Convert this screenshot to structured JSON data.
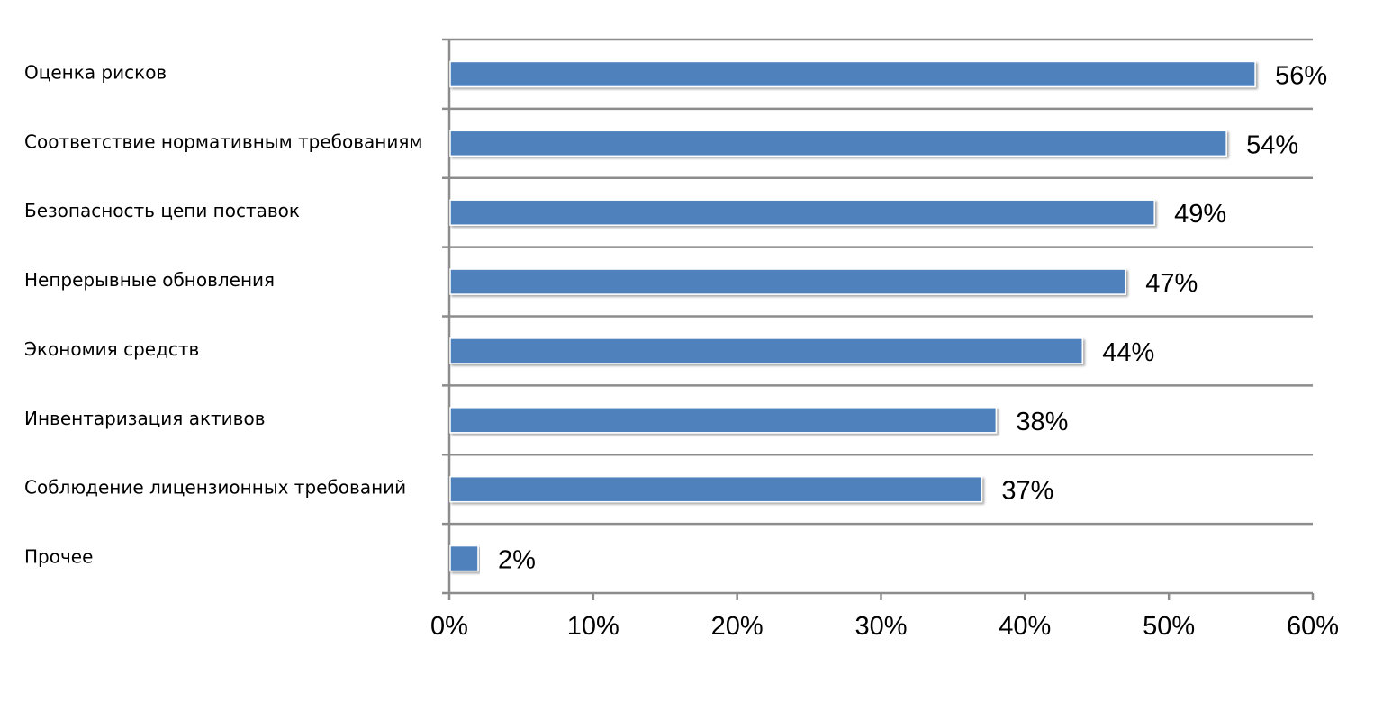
{
  "chart_data": {
    "type": "bar",
    "orientation": "horizontal",
    "categories": [
      "Оценка рисков",
      "Соответствие нормативным требованиям",
      "Безопасность цепи поставок",
      "Непрерывные обновления",
      "Экономия средств",
      "Инвентаризация активов",
      "Соблюдение лицензионных требований",
      "Прочее"
    ],
    "values": [
      56,
      54,
      49,
      47,
      44,
      38,
      37,
      2
    ],
    "data_labels": [
      "56%",
      "54%",
      "49%",
      "47%",
      "44%",
      "38%",
      "37%",
      "2%"
    ],
    "x_ticks": [
      0,
      10,
      20,
      30,
      40,
      50,
      60
    ],
    "x_tick_labels": [
      "0%",
      "10%",
      "20%",
      "30%",
      "40%",
      "50%",
      "60%"
    ],
    "xlim": [
      0,
      60
    ],
    "bar_color": "#4F81BD",
    "grid": "horizontal lines between categories",
    "legend": "none"
  }
}
